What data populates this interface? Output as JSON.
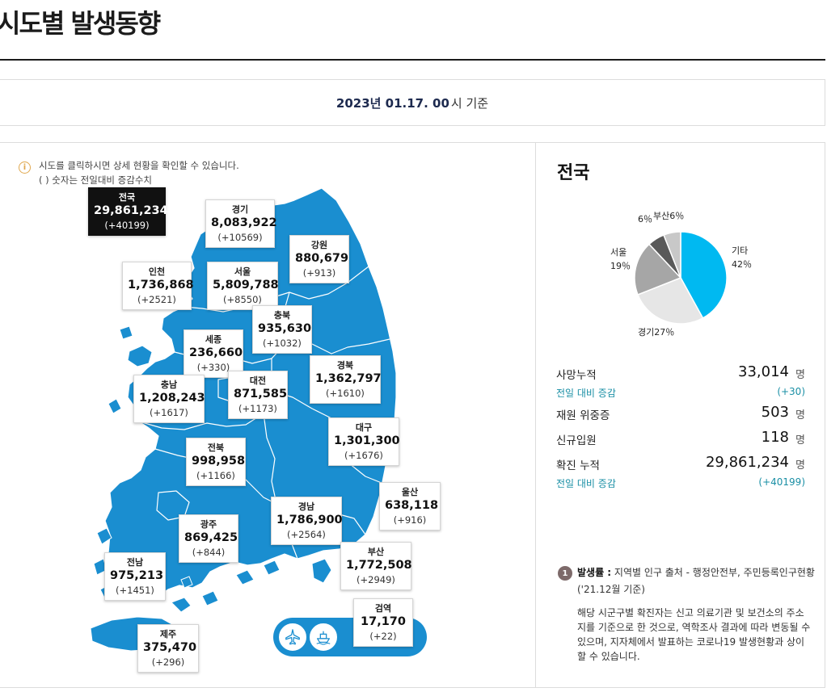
{
  "page_title": "시도별 발생동향",
  "date_bar": {
    "date_bold": "2023년 01.17. 00",
    "date_suffix": "시 기준"
  },
  "info": {
    "icon": "info-icon",
    "line1": "시도를 클릭하시면 상세 현황을 확인할 수 있습니다.",
    "line2": "( ) 숫자는 전일대비 증감수치"
  },
  "regions": {
    "national": {
      "name": "전국",
      "value": "29,861,234",
      "delta": "(+40199)"
    },
    "gyeonggi": {
      "name": "경기",
      "value": "8,083,922",
      "delta": "(+10569)"
    },
    "gangwon": {
      "name": "강원",
      "value": "880,679",
      "delta": "(+913)"
    },
    "incheon": {
      "name": "인천",
      "value": "1,736,868",
      "delta": "(+2521)"
    },
    "seoul": {
      "name": "서울",
      "value": "5,809,788",
      "delta": "(+8550)"
    },
    "chungbuk": {
      "name": "충북",
      "value": "935,630",
      "delta": "(+1032)"
    },
    "sejong": {
      "name": "세종",
      "value": "236,660",
      "delta": "(+330)"
    },
    "gyeongbuk": {
      "name": "경북",
      "value": "1,362,797",
      "delta": "(+1610)"
    },
    "chungnam": {
      "name": "충남",
      "value": "1,208,243",
      "delta": "(+1617)"
    },
    "daejeon": {
      "name": "대전",
      "value": "871,585",
      "delta": "(+1173)"
    },
    "daegu": {
      "name": "대구",
      "value": "1,301,300",
      "delta": "(+1676)"
    },
    "jeonbuk": {
      "name": "전북",
      "value": "998,958",
      "delta": "(+1166)"
    },
    "ulsan": {
      "name": "울산",
      "value": "638,118",
      "delta": "(+916)"
    },
    "gyeongnam": {
      "name": "경남",
      "value": "1,786,900",
      "delta": "(+2564)"
    },
    "gwangju": {
      "name": "광주",
      "value": "869,425",
      "delta": "(+844)"
    },
    "busan": {
      "name": "부산",
      "value": "1,772,508",
      "delta": "(+2949)"
    },
    "jeonnam": {
      "name": "전남",
      "value": "975,213",
      "delta": "(+1451)"
    },
    "quarantine": {
      "name": "검역",
      "value": "17,170",
      "delta": "(+22)"
    },
    "jeju": {
      "name": "제주",
      "value": "375,470",
      "delta": "(+296)"
    }
  },
  "port_buttons": {
    "airport_icon": "airplane-icon",
    "seaport_icon": "ship-icon"
  },
  "side": {
    "title": "전국",
    "pie": {
      "slices": [
        {
          "name": "기타",
          "percent": 42,
          "color": "#00b9f1"
        },
        {
          "name": "경기",
          "percent": 27,
          "color": "#e6e6e6"
        },
        {
          "name": "서울",
          "percent": 19,
          "color": "#a6a6a6"
        },
        {
          "name": "부산",
          "percent": 6,
          "color": "#595959"
        },
        {
          "name": "",
          "percent": 6,
          "color": "#c8c8c8"
        }
      ],
      "labels": {
        "etc_name": "기타",
        "etc_pct": "42％",
        "gyeonggi": "경기27％",
        "seoul_name": "서울",
        "seoul_pct": "19％",
        "busan": "부산6％",
        "other": "6％"
      }
    },
    "stats": {
      "deaths_label": "사망누적",
      "deaths_value": "33,014",
      "deaths_unit": "명",
      "deaths_sub_label": "전일 대비 증감",
      "deaths_sub_value": "(+30)",
      "critical_label": "재원 위중증",
      "critical_value": "503",
      "critical_unit": "명",
      "admit_label": "신규입원",
      "admit_value": "118",
      "admit_unit": "명",
      "confirmed_label": "확진 누적",
      "confirmed_value": "29,861,234",
      "confirmed_unit": "명",
      "confirmed_sub_label": "전일 대비 증감",
      "confirmed_sub_value": "(+40199)"
    },
    "note": {
      "number": "1",
      "head_bold": "발생률 :",
      "head_text": " 지역별 인구 출처 - 행정안전부, 주민등록인구현황 ('21.12월 기준)",
      "body": "해당 시군구별 확진자는 신고 의료기관 및 보건소의 주소지를 기준으로 한 것으로, 역학조사 결과에 따라 변동될 수 있으며, 지자체에서 발표하는 코로나19 발생현황과 상이할 수 있습니다."
    }
  },
  "colors": {
    "map": "#1a8ed0",
    "navy": "#1d2a4f",
    "teal": "#1a8fa5"
  }
}
